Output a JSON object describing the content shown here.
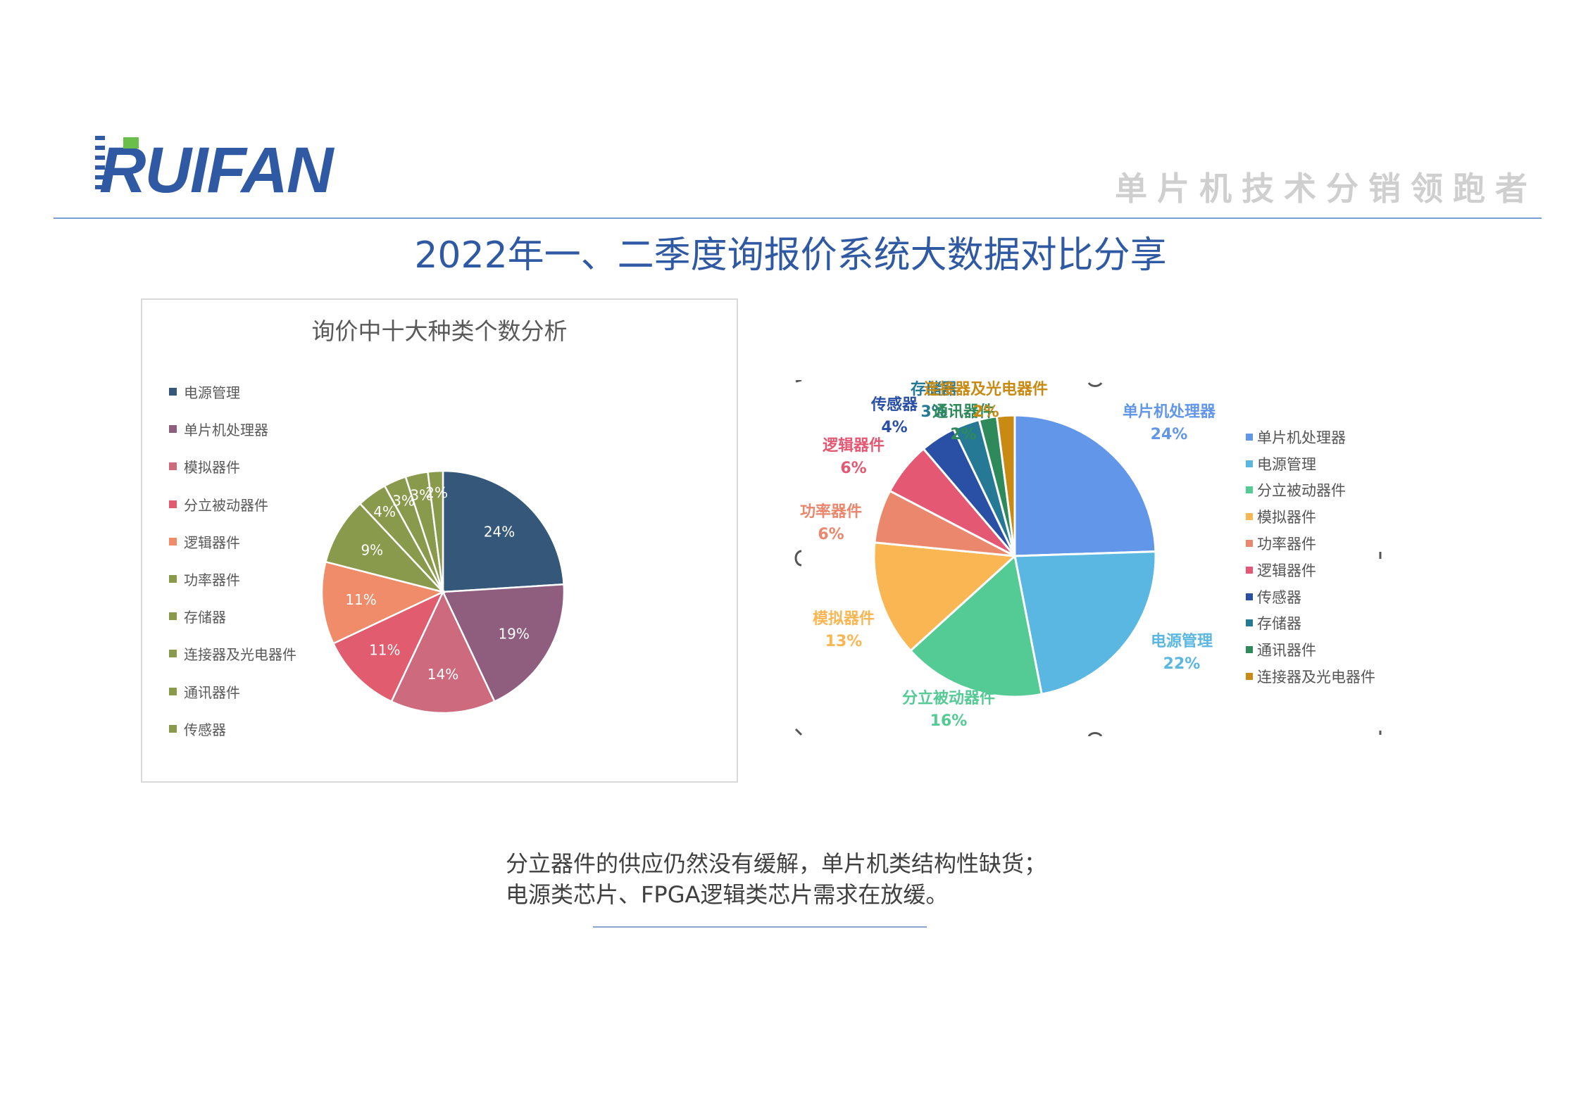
{
  "header": {
    "logo_text": "RUIFAN",
    "slogan": "单片机技术分销领跑者"
  },
  "page_title": "2022年一、二季度询报价系统大数据对比分享",
  "colors": {
    "title_blue": "#2f5aa3",
    "rule_blue": "#7a9fd4"
  },
  "chart_data": [
    {
      "type": "pie",
      "title": "询价中十大种类个数分析",
      "legend_position": "left",
      "categories": [
        "电源管理",
        "单片机处理器",
        "模拟器件",
        "分立被动器件",
        "逻辑器件",
        "功率器件",
        "存储器",
        "连接器及光电器件",
        "通讯器件",
        "传感器"
      ],
      "values": [
        24,
        19,
        14,
        11,
        11,
        9,
        4,
        3,
        3,
        2
      ],
      "labels": [
        "24%",
        "19%",
        "14%",
        "11%",
        "11%",
        "9%",
        "4%",
        "3%",
        "3%",
        "2%"
      ],
      "colors": [
        "#35587a",
        "#8f5d7d",
        "#cd6a7e",
        "#e05c6e",
        "#f08c6a",
        "#8a9a4d",
        "#8a9a4d",
        "#8a9a4d",
        "#8a9a4d",
        "#8a9a4d"
      ]
    },
    {
      "type": "pie",
      "legend_position": "right",
      "categories": [
        "单片机处理器",
        "电源管理",
        "分立被动器件",
        "模拟器件",
        "功率器件",
        "逻辑器件",
        "传感器",
        "存储器",
        "通讯器件",
        "连接器及光电器件"
      ],
      "values": [
        24,
        22,
        16,
        13,
        6,
        6,
        4,
        3,
        2,
        2
      ],
      "labels": [
        "24%",
        "22%",
        "16%",
        "13%",
        "6%",
        "6%",
        "4%",
        "3%",
        "2%",
        "2%"
      ],
      "colors": [
        "#6296e8",
        "#5ab7e2",
        "#54cb94",
        "#fbb654",
        "#ea876c",
        "#e55873",
        "#2a50a6",
        "#257994",
        "#2f8a5b",
        "#c88a12"
      ]
    }
  ],
  "conclusion": {
    "line1": "分立器件的供应仍然没有缓解，单片机类结构性缺货；",
    "line2": "电源类芯片、FPGA逻辑类芯片需求在放缓。"
  }
}
